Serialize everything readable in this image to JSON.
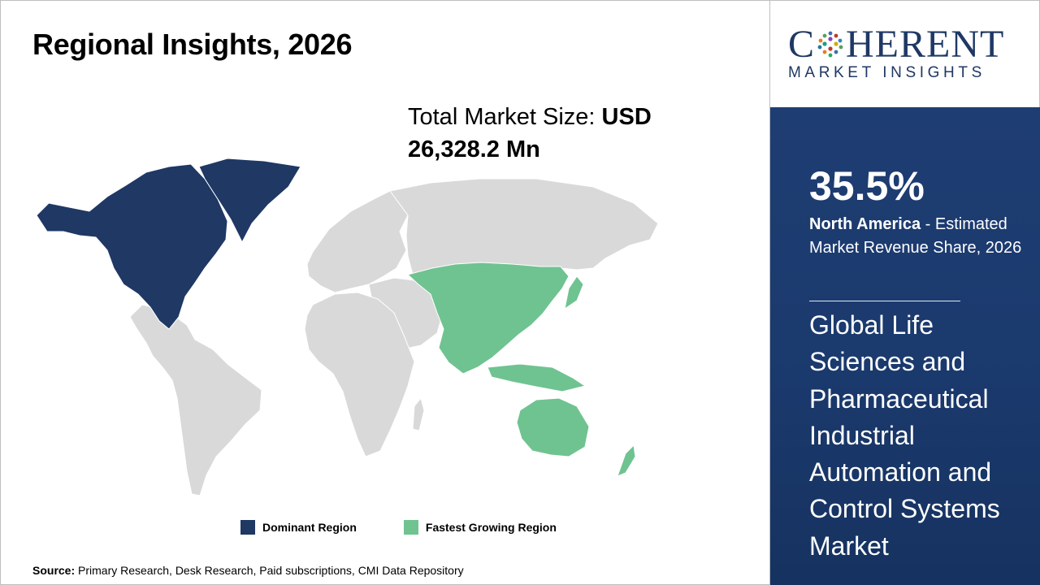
{
  "header": {
    "title": "Regional Insights, 2026"
  },
  "market_size": {
    "label": "Total Market Size:",
    "value_prefix": "USD",
    "value": "26,328.2 Mn"
  },
  "legend": [
    {
      "label": "Dominant Region",
      "color": "#1f3864"
    },
    {
      "label": "Fastest Growing Region",
      "color": "#6fc391"
    }
  ],
  "source": {
    "label": "Source:",
    "text": "Primary Research, Desk Research, Paid subscriptions, CMI Data Repository"
  },
  "logo": {
    "word_pre": "C",
    "word_post": "HERENT",
    "sub": "MARKET INSIGHTS"
  },
  "highlight": {
    "percent": "35.5%",
    "region": "North America",
    "description": "- Estimated Market Revenue Share, 2026",
    "market_name": "Global Life Sciences and Pharmaceutical Industrial Automation and Control Systems Market"
  },
  "colors": {
    "dominant": "#1f3864",
    "fastest": "#6fc391",
    "neutral": "#d9d9d9",
    "panel": "#1e3d72"
  },
  "map_regions": {
    "dominant": [
      "North America"
    ],
    "fastest_growing": [
      "Asia Pacific"
    ],
    "other": [
      "Latin America",
      "Europe",
      "Middle East",
      "Africa"
    ]
  }
}
